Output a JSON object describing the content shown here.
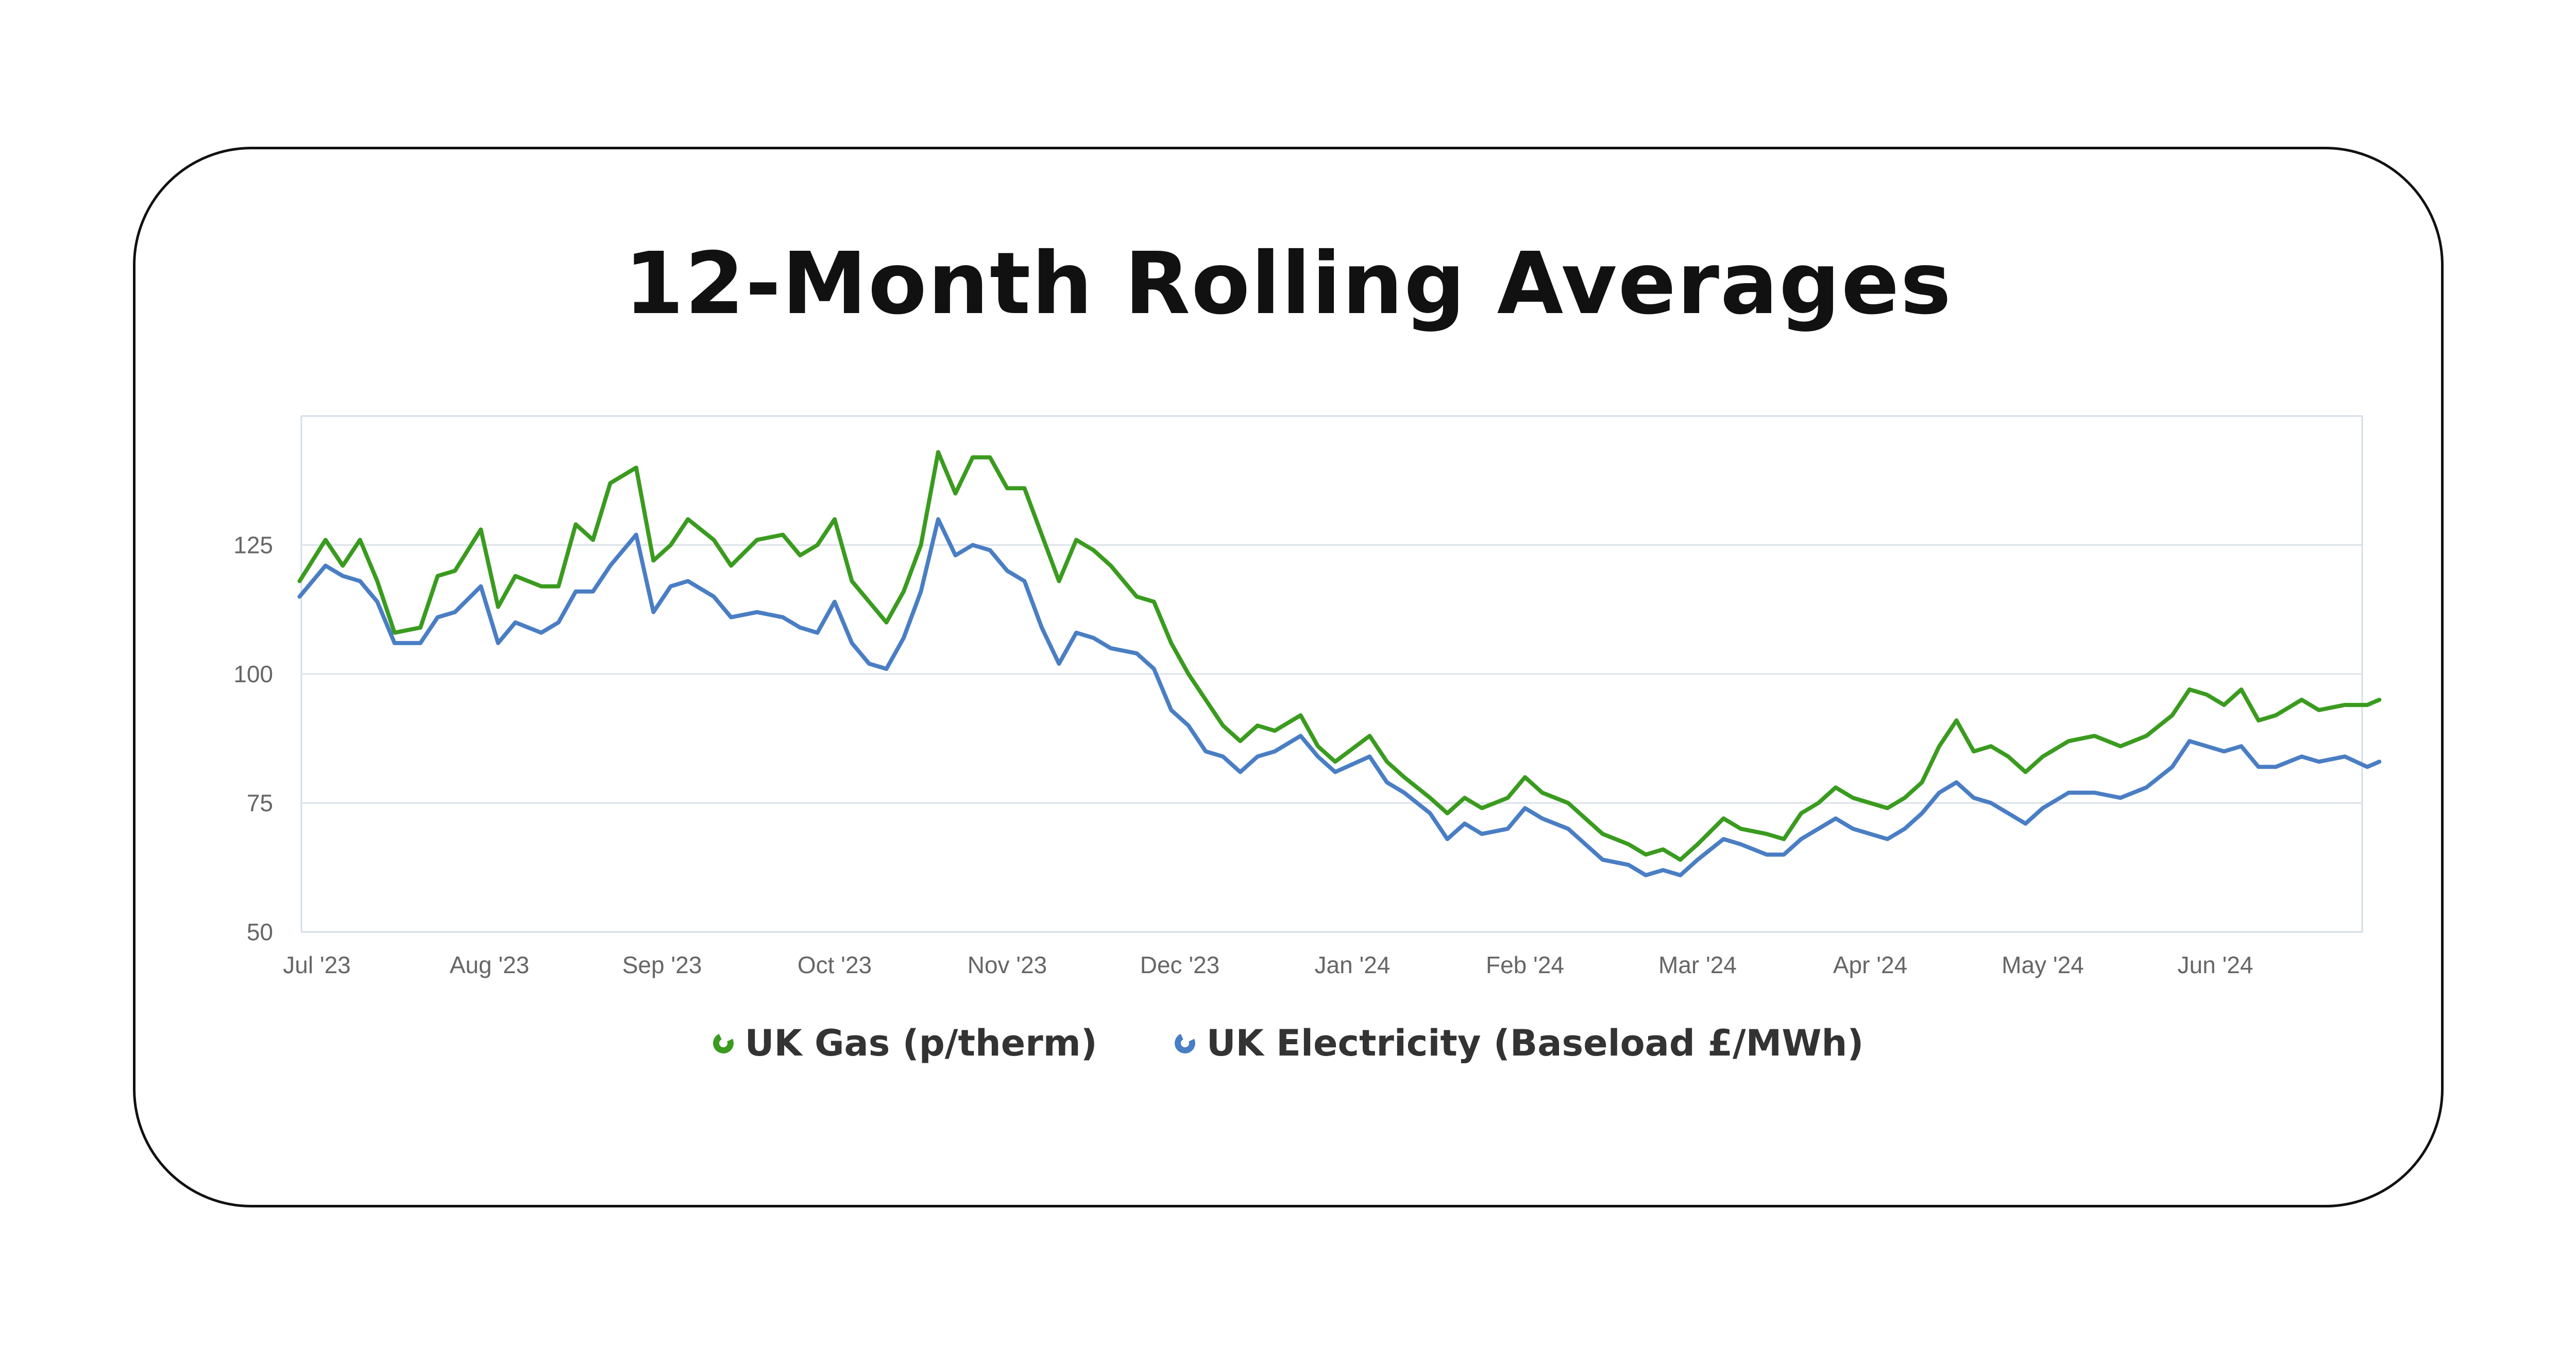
{
  "page": {
    "title": "12-Month Rolling Averages"
  },
  "colors": {
    "gas": "#3a9b1f",
    "electricity": "#4a7ec4",
    "grid": "#dde3ea",
    "frame": "#d5dde7"
  },
  "chart_data": {
    "type": "line",
    "title": "12-Month Rolling Averages",
    "xlabel": "",
    "ylabel": "",
    "ylim": [
      50,
      150
    ],
    "y_ticks": [
      50,
      75,
      100,
      125
    ],
    "x_range": [
      0,
      12
    ],
    "x_ticks": [
      {
        "label": "Jul '23",
        "x": 0
      },
      {
        "label": "Aug '23",
        "x": 1
      },
      {
        "label": "Sep '23",
        "x": 2
      },
      {
        "label": "Oct '23",
        "x": 3
      },
      {
        "label": "Nov '23",
        "x": 4
      },
      {
        "label": "Dec '23",
        "x": 5
      },
      {
        "label": "Jan '24",
        "x": 6
      },
      {
        "label": "Feb '24",
        "x": 7
      },
      {
        "label": "Mar '24",
        "x": 8
      },
      {
        "label": "Apr '24",
        "x": 9
      },
      {
        "label": "May '24",
        "x": 10
      },
      {
        "label": "Jun '24",
        "x": 11
      }
    ],
    "series": [
      {
        "name": "UK Gas (p/therm)",
        "color": "#3a9b1f",
        "points": [
          [
            -0.1,
            118
          ],
          [
            0.05,
            126
          ],
          [
            0.15,
            121
          ],
          [
            0.25,
            126
          ],
          [
            0.35,
            118
          ],
          [
            0.45,
            108
          ],
          [
            0.6,
            109
          ],
          [
            0.7,
            119
          ],
          [
            0.8,
            120
          ],
          [
            0.95,
            128
          ],
          [
            1.05,
            113
          ],
          [
            1.15,
            119
          ],
          [
            1.3,
            117
          ],
          [
            1.4,
            117
          ],
          [
            1.5,
            129
          ],
          [
            1.6,
            126
          ],
          [
            1.7,
            137
          ],
          [
            1.85,
            140
          ],
          [
            1.95,
            122
          ],
          [
            2.05,
            125
          ],
          [
            2.15,
            130
          ],
          [
            2.3,
            126
          ],
          [
            2.4,
            121
          ],
          [
            2.55,
            126
          ],
          [
            2.7,
            127
          ],
          [
            2.8,
            123
          ],
          [
            2.9,
            125
          ],
          [
            3.0,
            130
          ],
          [
            3.1,
            118
          ],
          [
            3.2,
            114
          ],
          [
            3.3,
            110
          ],
          [
            3.4,
            116
          ],
          [
            3.5,
            125
          ],
          [
            3.6,
            143
          ],
          [
            3.7,
            135
          ],
          [
            3.8,
            142
          ],
          [
            3.9,
            142
          ],
          [
            4.0,
            136
          ],
          [
            4.1,
            136
          ],
          [
            4.2,
            127
          ],
          [
            4.3,
            118
          ],
          [
            4.4,
            126
          ],
          [
            4.5,
            124
          ],
          [
            4.6,
            121
          ],
          [
            4.75,
            115
          ],
          [
            4.85,
            114
          ],
          [
            4.95,
            106
          ],
          [
            5.05,
            100
          ],
          [
            5.15,
            95
          ],
          [
            5.25,
            90
          ],
          [
            5.35,
            87
          ],
          [
            5.45,
            90
          ],
          [
            5.55,
            89
          ],
          [
            5.7,
            92
          ],
          [
            5.8,
            86
          ],
          [
            5.9,
            83
          ],
          [
            6.1,
            88
          ],
          [
            6.2,
            83
          ],
          [
            6.3,
            80
          ],
          [
            6.45,
            76
          ],
          [
            6.55,
            73
          ],
          [
            6.65,
            76
          ],
          [
            6.75,
            74
          ],
          [
            6.9,
            76
          ],
          [
            7.0,
            80
          ],
          [
            7.1,
            77
          ],
          [
            7.25,
            75
          ],
          [
            7.35,
            72
          ],
          [
            7.45,
            69
          ],
          [
            7.6,
            67
          ],
          [
            7.7,
            65
          ],
          [
            7.8,
            66
          ],
          [
            7.9,
            64
          ],
          [
            8.0,
            67
          ],
          [
            8.15,
            72
          ],
          [
            8.25,
            70
          ],
          [
            8.4,
            69
          ],
          [
            8.5,
            68
          ],
          [
            8.6,
            73
          ],
          [
            8.7,
            75
          ],
          [
            8.8,
            78
          ],
          [
            8.9,
            76
          ],
          [
            9.0,
            75
          ],
          [
            9.1,
            74
          ],
          [
            9.2,
            76
          ],
          [
            9.3,
            79
          ],
          [
            9.4,
            86
          ],
          [
            9.5,
            91
          ],
          [
            9.6,
            85
          ],
          [
            9.7,
            86
          ],
          [
            9.8,
            84
          ],
          [
            9.9,
            81
          ],
          [
            10.0,
            84
          ],
          [
            10.15,
            87
          ],
          [
            10.3,
            88
          ],
          [
            10.45,
            86
          ],
          [
            10.6,
            88
          ],
          [
            10.75,
            92
          ],
          [
            10.85,
            97
          ],
          [
            10.95,
            96
          ],
          [
            11.05,
            94
          ],
          [
            11.15,
            97
          ],
          [
            11.25,
            91
          ],
          [
            11.35,
            92
          ],
          [
            11.5,
            95
          ],
          [
            11.6,
            93
          ],
          [
            11.75,
            94
          ],
          [
            11.88,
            94
          ],
          [
            11.95,
            95
          ]
        ]
      },
      {
        "name": "UK Electricity (Baseload £/MWh)",
        "color": "#4a7ec4",
        "points": [
          [
            -0.1,
            115
          ],
          [
            0.05,
            121
          ],
          [
            0.15,
            119
          ],
          [
            0.25,
            118
          ],
          [
            0.35,
            114
          ],
          [
            0.45,
            106
          ],
          [
            0.6,
            106
          ],
          [
            0.7,
            111
          ],
          [
            0.8,
            112
          ],
          [
            0.95,
            117
          ],
          [
            1.05,
            106
          ],
          [
            1.15,
            110
          ],
          [
            1.3,
            108
          ],
          [
            1.4,
            110
          ],
          [
            1.5,
            116
          ],
          [
            1.6,
            116
          ],
          [
            1.7,
            121
          ],
          [
            1.85,
            127
          ],
          [
            1.95,
            112
          ],
          [
            2.05,
            117
          ],
          [
            2.15,
            118
          ],
          [
            2.3,
            115
          ],
          [
            2.4,
            111
          ],
          [
            2.55,
            112
          ],
          [
            2.7,
            111
          ],
          [
            2.8,
            109
          ],
          [
            2.9,
            108
          ],
          [
            3.0,
            114
          ],
          [
            3.1,
            106
          ],
          [
            3.2,
            102
          ],
          [
            3.3,
            101
          ],
          [
            3.4,
            107
          ],
          [
            3.5,
            116
          ],
          [
            3.6,
            130
          ],
          [
            3.7,
            123
          ],
          [
            3.8,
            125
          ],
          [
            3.9,
            124
          ],
          [
            4.0,
            120
          ],
          [
            4.1,
            118
          ],
          [
            4.2,
            109
          ],
          [
            4.3,
            102
          ],
          [
            4.4,
            108
          ],
          [
            4.5,
            107
          ],
          [
            4.6,
            105
          ],
          [
            4.75,
            104
          ],
          [
            4.85,
            101
          ],
          [
            4.95,
            93
          ],
          [
            5.05,
            90
          ],
          [
            5.15,
            85
          ],
          [
            5.25,
            84
          ],
          [
            5.35,
            81
          ],
          [
            5.45,
            84
          ],
          [
            5.55,
            85
          ],
          [
            5.7,
            88
          ],
          [
            5.8,
            84
          ],
          [
            5.9,
            81
          ],
          [
            6.1,
            84
          ],
          [
            6.2,
            79
          ],
          [
            6.3,
            77
          ],
          [
            6.45,
            73
          ],
          [
            6.55,
            68
          ],
          [
            6.65,
            71
          ],
          [
            6.75,
            69
          ],
          [
            6.9,
            70
          ],
          [
            7.0,
            74
          ],
          [
            7.1,
            72
          ],
          [
            7.25,
            70
          ],
          [
            7.35,
            67
          ],
          [
            7.45,
            64
          ],
          [
            7.6,
            63
          ],
          [
            7.7,
            61
          ],
          [
            7.8,
            62
          ],
          [
            7.9,
            61
          ],
          [
            8.0,
            64
          ],
          [
            8.15,
            68
          ],
          [
            8.25,
            67
          ],
          [
            8.4,
            65
          ],
          [
            8.5,
            65
          ],
          [
            8.6,
            68
          ],
          [
            8.7,
            70
          ],
          [
            8.8,
            72
          ],
          [
            8.9,
            70
          ],
          [
            9.0,
            69
          ],
          [
            9.1,
            68
          ],
          [
            9.2,
            70
          ],
          [
            9.3,
            73
          ],
          [
            9.4,
            77
          ],
          [
            9.5,
            79
          ],
          [
            9.6,
            76
          ],
          [
            9.7,
            75
          ],
          [
            9.8,
            73
          ],
          [
            9.9,
            71
          ],
          [
            10.0,
            74
          ],
          [
            10.15,
            77
          ],
          [
            10.3,
            77
          ],
          [
            10.45,
            76
          ],
          [
            10.6,
            78
          ],
          [
            10.75,
            82
          ],
          [
            10.85,
            87
          ],
          [
            10.95,
            86
          ],
          [
            11.05,
            85
          ],
          [
            11.15,
            86
          ],
          [
            11.25,
            82
          ],
          [
            11.35,
            82
          ],
          [
            11.5,
            84
          ],
          [
            11.6,
            83
          ],
          [
            11.75,
            84
          ],
          [
            11.88,
            82
          ],
          [
            11.95,
            83
          ]
        ]
      }
    ]
  },
  "legend": [
    {
      "label": "UK Gas (p/therm)",
      "color": "#3a9b1f"
    },
    {
      "label": "UK Electricity (Baseload £/MWh)",
      "color": "#4a7ec4"
    }
  ]
}
